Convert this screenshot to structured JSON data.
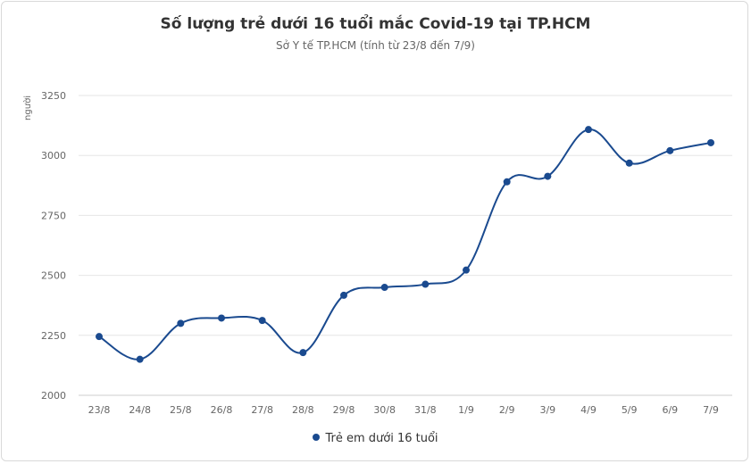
{
  "chart_data": {
    "type": "line",
    "title": "Số lượng trẻ dưới 16 tuổi mắc Covid-19 tại TP.HCM",
    "subtitle": "Sở Y tế TP.HCM (tính từ 23/8 đến 7/9)",
    "ylabel": "người",
    "xlabel": "",
    "categories": [
      "23/8",
      "24/8",
      "25/8",
      "26/8",
      "27/8",
      "28/8",
      "29/8",
      "30/8",
      "31/8",
      "1/9",
      "2/9",
      "3/9",
      "4/9",
      "5/9",
      "6/9",
      "7/9"
    ],
    "series": [
      {
        "name": "Trẻ em dưới 16 tuổi",
        "color": "#1a4a8f",
        "values": [
          2245,
          2150,
          2300,
          2322,
          2312,
          2178,
          2417,
          2450,
          2463,
          2522,
          2890,
          2913,
          3108,
          2968,
          3020,
          3053
        ]
      }
    ],
    "ylim": [
      2000,
      3250
    ],
    "yticks": [
      2000,
      2250,
      2500,
      2750,
      3000,
      3250
    ],
    "grid": true,
    "legend": "bottom"
  }
}
